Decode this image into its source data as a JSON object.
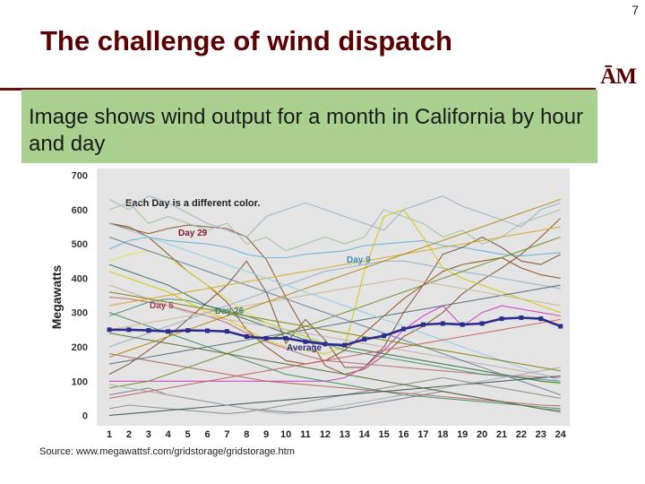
{
  "slide": {
    "page_number": "7",
    "title": "The challenge of wind dispatch",
    "logo_text": "ĀM",
    "callout": "Image shows wind output for a month in California by hour and day",
    "source": "Source: www.megawattsf.com/gridstorage/gridstorage.htm"
  },
  "colors": {
    "title": "#5a0000",
    "rule": "#6b0f0f",
    "callout_bg": "#a9d08e",
    "plot_bg": "#e4e4e4",
    "average": "#2b2d8c"
  },
  "chart_data": {
    "type": "line",
    "title": "Each Day is a different color.",
    "xlabel": "",
    "ylabel": "Megawatts",
    "categories": [
      1,
      2,
      3,
      4,
      5,
      6,
      7,
      8,
      9,
      10,
      11,
      12,
      13,
      14,
      15,
      16,
      17,
      18,
      19,
      20,
      21,
      22,
      23,
      24
    ],
    "yticks": [
      0,
      100,
      200,
      300,
      400,
      500,
      600,
      700
    ],
    "ylim": [
      -30,
      720
    ],
    "grid": false,
    "legend": "none",
    "average": {
      "name": "Average",
      "color": "#2b2d8c",
      "values": [
        250,
        250,
        248,
        245,
        248,
        247,
        245,
        230,
        225,
        225,
        215,
        208,
        205,
        222,
        232,
        252,
        265,
        268,
        265,
        268,
        282,
        285,
        282,
        260
      ]
    },
    "series": [
      {
        "name": "Day 29",
        "color": "#8b4a1a",
        "values": [
          560,
          545,
          530,
          545,
          555,
          550,
          545,
          520,
          455,
          345,
          245,
          145,
          120,
          135,
          175,
          230,
          260,
          300,
          355,
          395,
          430,
          470,
          520,
          575
        ]
      },
      {
        "name": "Day 9",
        "color": "#5bb3de",
        "values": [
          485,
          510,
          520,
          510,
          505,
          500,
          490,
          470,
          460,
          460,
          470,
          475,
          480,
          495,
          500,
          505,
          510,
          495,
          490,
          480,
          470,
          465,
          470,
          475
        ]
      },
      {
        "name": "Day 5",
        "color": "#c06070",
        "values": [
          345,
          340,
          330,
          320,
          305,
          290,
          270,
          240,
          215,
          195,
          175,
          160,
          155,
          150,
          145,
          140,
          135,
          130,
          125,
          120,
          118,
          115,
          112,
          110
        ]
      },
      {
        "name": "Day 26",
        "color": "#3f8f6f",
        "values": [
          290,
          310,
          330,
          340,
          335,
          320,
          305,
          290,
          270,
          250,
          230,
          210,
          190,
          180,
          170,
          160,
          150,
          140,
          130,
          120,
          115,
          110,
          105,
          100
        ]
      },
      {
        "name": "",
        "color": "#8b4513",
        "values": [
          560,
          550,
          520,
          470,
          420,
          380,
          330,
          250,
          200,
          160,
          150,
          160,
          190,
          240,
          290,
          340,
          380,
          420,
          440,
          450,
          460,
          430,
          410,
          400
        ]
      },
      {
        "name": "",
        "color": "#7a4a2a",
        "values": [
          120,
          150,
          190,
          230,
          280,
          330,
          380,
          450,
          360,
          210,
          280,
          220,
          140,
          140,
          200,
          300,
          380,
          470,
          490,
          520,
          490,
          450,
          440,
          470
        ]
      },
      {
        "name": "",
        "color": "#d4c400",
        "values": [
          420,
          400,
          380,
          360,
          330,
          300,
          280,
          250,
          220,
          200,
          190,
          180,
          200,
          420,
          580,
          600,
          520,
          430,
          400,
          380,
          360,
          340,
          320,
          300
        ]
      },
      {
        "name": "",
        "color": "#e0e040",
        "values": [
          450,
          470,
          480,
          460,
          420,
          380,
          340,
          300,
          270,
          250,
          230,
          210,
          200,
          190,
          180,
          170,
          160,
          150,
          140,
          130,
          120,
          110,
          100,
          90
        ]
      },
      {
        "name": "",
        "color": "#cc33cc",
        "values": [
          100,
          100,
          100,
          100,
          100,
          100,
          100,
          100,
          100,
          100,
          100,
          100,
          110,
          140,
          190,
          250,
          290,
          320,
          260,
          300,
          320,
          310,
          300,
          290
        ]
      },
      {
        "name": "",
        "color": "#708090",
        "values": [
          60,
          70,
          80,
          60,
          50,
          40,
          30,
          20,
          15,
          10,
          10,
          15,
          20,
          30,
          40,
          50,
          60,
          70,
          60,
          50,
          40,
          30,
          20,
          15
        ]
      },
      {
        "name": "",
        "color": "#8b8b83",
        "values": [
          20,
          30,
          25,
          20,
          15,
          10,
          5,
          10,
          20,
          30,
          40,
          50,
          60,
          70,
          80,
          90,
          100,
          110,
          100,
          90,
          80,
          70,
          60,
          50
        ]
      },
      {
        "name": "",
        "color": "#3c8c5a",
        "values": [
          300,
          280,
          260,
          240,
          220,
          200,
          180,
          160,
          140,
          120,
          110,
          100,
          90,
          80,
          70,
          60,
          55,
          50,
          45,
          40,
          35,
          30,
          25,
          20
        ]
      },
      {
        "name": "",
        "color": "#90b0c8",
        "values": [
          200,
          220,
          240,
          260,
          280,
          300,
          320,
          340,
          360,
          380,
          400,
          420,
          430,
          440,
          450,
          450,
          440,
          430,
          420,
          410,
          400,
          390,
          380,
          370
        ]
      },
      {
        "name": "",
        "color": "#a0c0a0",
        "values": [
          600,
          620,
          560,
          580,
          560,
          540,
          560,
          500,
          520,
          480,
          500,
          520,
          500,
          520,
          600,
          580,
          560,
          520,
          540,
          500,
          520,
          560,
          580,
          600
        ]
      },
      {
        "name": "",
        "color": "#9ab0cc",
        "values": [
          630,
          600,
          640,
          620,
          590,
          560,
          540,
          520,
          580,
          600,
          620,
          600,
          580,
          560,
          540,
          600,
          620,
          640,
          610,
          590,
          570,
          550,
          600,
          620
        ]
      },
      {
        "name": "",
        "color": "#2e6b5e",
        "values": [
          440,
          420,
          400,
          380,
          350,
          320,
          300,
          280,
          260,
          240,
          220,
          210,
          200,
          190,
          180,
          170,
          160,
          150,
          140,
          130,
          120,
          110,
          100,
          95
        ]
      },
      {
        "name": "",
        "color": "#b06060",
        "values": [
          180,
          170,
          160,
          150,
          140,
          130,
          120,
          110,
          100,
          95,
          90,
          85,
          80,
          75,
          70,
          65,
          60,
          55,
          50,
          45,
          40,
          35,
          30,
          28
        ]
      },
      {
        "name": "",
        "color": "#4a6a7a",
        "values": [
          150,
          160,
          170,
          180,
          190,
          200,
          210,
          220,
          230,
          240,
          250,
          260,
          270,
          280,
          290,
          300,
          310,
          320,
          330,
          340,
          350,
          360,
          370,
          380
        ]
      },
      {
        "name": "",
        "color": "#c8a8a8",
        "values": [
          380,
          360,
          340,
          320,
          300,
          290,
          280,
          270,
          260,
          250,
          240,
          230,
          220,
          210,
          200,
          190,
          180,
          170,
          160,
          150,
          140,
          130,
          120,
          110
        ]
      },
      {
        "name": "",
        "color": "#6b8e23",
        "values": [
          80,
          90,
          100,
          120,
          140,
          160,
          180,
          200,
          220,
          240,
          260,
          280,
          300,
          320,
          340,
          360,
          380,
          400,
          420,
          440,
          460,
          480,
          500,
          520
        ]
      },
      {
        "name": "",
        "color": "#d2b48c",
        "values": [
          250,
          260,
          270,
          280,
          290,
          300,
          310,
          320,
          330,
          340,
          350,
          360,
          370,
          380,
          390,
          400,
          390,
          380,
          370,
          360,
          350,
          340,
          330,
          320
        ]
      },
      {
        "name": "",
        "color": "#5f7f9f",
        "values": [
          520,
          500,
          480,
          460,
          440,
          420,
          400,
          380,
          360,
          340,
          320,
          300,
          280,
          260,
          240,
          220,
          200,
          180,
          160,
          140,
          120,
          100,
          80,
          60
        ]
      },
      {
        "name": "",
        "color": "#2f4f4f",
        "values": [
          0,
          5,
          10,
          15,
          20,
          25,
          30,
          35,
          40,
          45,
          50,
          55,
          60,
          65,
          70,
          75,
          80,
          85,
          90,
          95,
          100,
          105,
          110,
          115
        ]
      },
      {
        "name": "",
        "color": "#daa520",
        "values": [
          320,
          330,
          340,
          350,
          360,
          370,
          380,
          390,
          400,
          410,
          420,
          430,
          440,
          450,
          460,
          470,
          480,
          490,
          500,
          510,
          520,
          530,
          540,
          550
        ]
      },
      {
        "name": "",
        "color": "#a9a9a9",
        "values": [
          90,
          80,
          70,
          60,
          50,
          40,
          30,
          20,
          10,
          5,
          10,
          20,
          30,
          40,
          50,
          60,
          70,
          80,
          90,
          100,
          110,
          120,
          130,
          140
        ]
      },
      {
        "name": "",
        "color": "#b8860b",
        "values": [
          170,
          190,
          210,
          230,
          250,
          270,
          290,
          310,
          330,
          350,
          370,
          390,
          410,
          430,
          450,
          470,
          490,
          510,
          530,
          550,
          570,
          590,
          610,
          630
        ]
      },
      {
        "name": "",
        "color": "#556b2f",
        "values": [
          240,
          230,
          220,
          210,
          200,
          190,
          180,
          170,
          160,
          150,
          140,
          130,
          120,
          110,
          100,
          90,
          80,
          70,
          60,
          50,
          40,
          30,
          20,
          10
        ]
      },
      {
        "name": "",
        "color": "#87ceeb",
        "values": [
          560,
          540,
          520,
          500,
          480,
          460,
          440,
          420,
          400,
          380,
          360,
          340,
          320,
          300,
          280,
          260,
          240,
          220,
          200,
          180,
          160,
          140,
          120,
          100
        ]
      },
      {
        "name": "",
        "color": "#cd5c5c",
        "values": [
          50,
          60,
          70,
          80,
          90,
          100,
          110,
          120,
          130,
          140,
          150,
          160,
          170,
          180,
          190,
          200,
          210,
          220,
          230,
          240,
          250,
          260,
          270,
          280
        ]
      },
      {
        "name": "",
        "color": "#808000",
        "values": [
          360,
          350,
          340,
          330,
          320,
          310,
          300,
          290,
          280,
          270,
          260,
          250,
          240,
          230,
          220,
          210,
          200,
          190,
          180,
          170,
          160,
          150,
          140,
          130
        ]
      }
    ]
  }
}
